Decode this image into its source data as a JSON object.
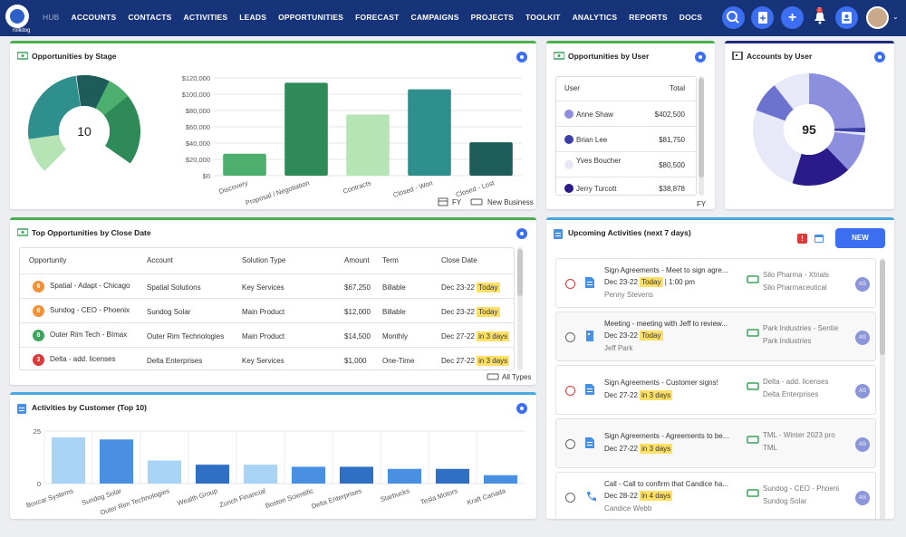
{
  "nav": {
    "logo_text": "rollidog",
    "hub": "HUB",
    "items": [
      "ACCOUNTS",
      "CONTACTS",
      "ACTIVITIES",
      "LEADS",
      "OPPORTUNITIES",
      "FORECAST",
      "CAMPAIGNS",
      "PROJECTS",
      "TOOLKIT",
      "ANALYTICS",
      "REPORTS",
      "DOCS"
    ],
    "notif_count": "2"
  },
  "stage": {
    "title": "Opportunities by Stage",
    "center": "10",
    "footer_fy": "FY",
    "footer_type": "New Business"
  },
  "chart_data": [
    {
      "type": "bar",
      "title": "Opportunities by Stage",
      "categories": [
        "Discovery",
        "Proposal / Negotiation",
        "Contracts",
        "Closed - Won",
        "Closed - Lost"
      ],
      "values": [
        27000,
        114000,
        75000,
        106000,
        41000
      ],
      "ylim": [
        0,
        120000
      ],
      "yticks": [
        "$0",
        "$20,000",
        "$40,000",
        "$60,000",
        "$80,000",
        "$100,000",
        "$120,000"
      ],
      "colors": [
        "#4caf6e",
        "#2e8b57",
        "#b7e4b5",
        "#2f8f8c",
        "#1d5c5a"
      ]
    },
    {
      "type": "bar",
      "title": "Activities by Customer (Top 10)",
      "categories": [
        "Boxcar Systems",
        "Sundog Solar",
        "Outer Rim Technologies",
        "Wealth Group",
        "Zurich Financial",
        "Boston Scientific",
        "Delta Enterprises",
        "Starbucks",
        "Tesla Motors",
        "Kraft Canada"
      ],
      "values": [
        22,
        21,
        11,
        9,
        9,
        8,
        8,
        7,
        7,
        4
      ],
      "ylim": [
        0,
        25
      ],
      "yticks": [
        "0",
        "25"
      ]
    }
  ],
  "by_user": {
    "title": "Opportunities by User",
    "col_user": "User",
    "col_total": "Total",
    "rows": [
      {
        "name": "Anne Shaw",
        "total": "$402,500",
        "color": "#8b8fdd"
      },
      {
        "name": "Brian Lee",
        "total": "$81,750",
        "color": "#3d3fa8"
      },
      {
        "name": "Yves Boucher",
        "total": "$80,500",
        "color": "#e6e8f7"
      },
      {
        "name": "Jerry Turcott",
        "total": "$38,878",
        "color": "#2b1b8a"
      }
    ],
    "footer": "FY"
  },
  "accounts": {
    "title": "Accounts by User",
    "center": "95"
  },
  "top_opps": {
    "title": "Top Opportunities by Close Date",
    "headers": [
      "Opportunity",
      "Account",
      "Solution Type",
      "Amount",
      "Term",
      "Close Date"
    ],
    "rows": [
      {
        "num": "6",
        "numcolor": "#f0913a",
        "opp": "Spatial - Adapt - Chicago",
        "account": "Spatial Solutions",
        "type": "Key Services",
        "amount": "$67,250",
        "term": "Billable",
        "date": "Dec 23-22",
        "badge": "Today"
      },
      {
        "num": "6",
        "numcolor": "#f0913a",
        "opp": "Sundog - CEO - Phoenix",
        "account": "Sundog Solar",
        "type": "Main Product",
        "amount": "$12,000",
        "term": "Billable",
        "date": "Dec 23-22",
        "badge": "Today"
      },
      {
        "num": "8",
        "numcolor": "#3da35d",
        "opp": "Outer Rim Tech - BImax",
        "account": "Outer Rim Technologies",
        "type": "Main Product",
        "amount": "$14,500",
        "term": "Monthly",
        "date": "Dec 27-22",
        "badge": "in 3 days"
      },
      {
        "num": "3",
        "numcolor": "#d93a3a",
        "opp": "Delta - add. licenses",
        "account": "Delta Enterprises",
        "type": "Key Services",
        "amount": "$1,000",
        "term": "One-Time",
        "date": "Dec 27-22",
        "badge": "in 3 days"
      }
    ],
    "footer": "All Types"
  },
  "activities": {
    "title": "Activities by Customer (Top 10)"
  },
  "upcoming": {
    "title": "Upcoming Activities (next 7 days)",
    "new_label": "NEW",
    "items": [
      {
        "title": "Sign Agreements - Meet to sign agre...",
        "date": "Dec 23-22",
        "badge": "Today",
        "extra": "| 1:00 pm",
        "person": "Penny Stevens",
        "acc1": "Silo Pharma - Xtrials",
        "acc2": "Silo Pharmaceutical",
        "av": "AS",
        "red": true,
        "icon": "doc"
      },
      {
        "title": "Meeting - meeting with Jeff to review...",
        "date": "Dec 23-22",
        "badge": "Today",
        "extra": "",
        "person": "Jeff Park",
        "acc1": "Park Industries - Sentie",
        "acc2": "Park Industries",
        "av": "AS",
        "red": false,
        "icon": "building"
      },
      {
        "title": "Sign Agreements - Customer signs!",
        "date": "Dec 27-22",
        "badge": "in 3 days",
        "extra": "",
        "person": "",
        "acc1": "Delta - add. licenses",
        "acc2": "Delta Enterprises",
        "av": "AS",
        "red": true,
        "icon": "doc"
      },
      {
        "title": "Sign Agreements - Agreements to be...",
        "date": "Dec 27-22",
        "badge": "in 3 days",
        "extra": "",
        "person": "",
        "acc1": "TML - Winter 2023 pro",
        "acc2": "TML",
        "av": "AS",
        "red": false,
        "icon": "doc"
      },
      {
        "title": "Call - Call to confirm that Candice ha...",
        "date": "Dec 28-22",
        "badge": "in 4 days",
        "extra": "",
        "person": "Candice Webb",
        "acc1": "Sundog - CEO - Phoeni",
        "acc2": "Sundog Solar",
        "av": "AS",
        "red": false,
        "icon": "phone"
      }
    ]
  }
}
